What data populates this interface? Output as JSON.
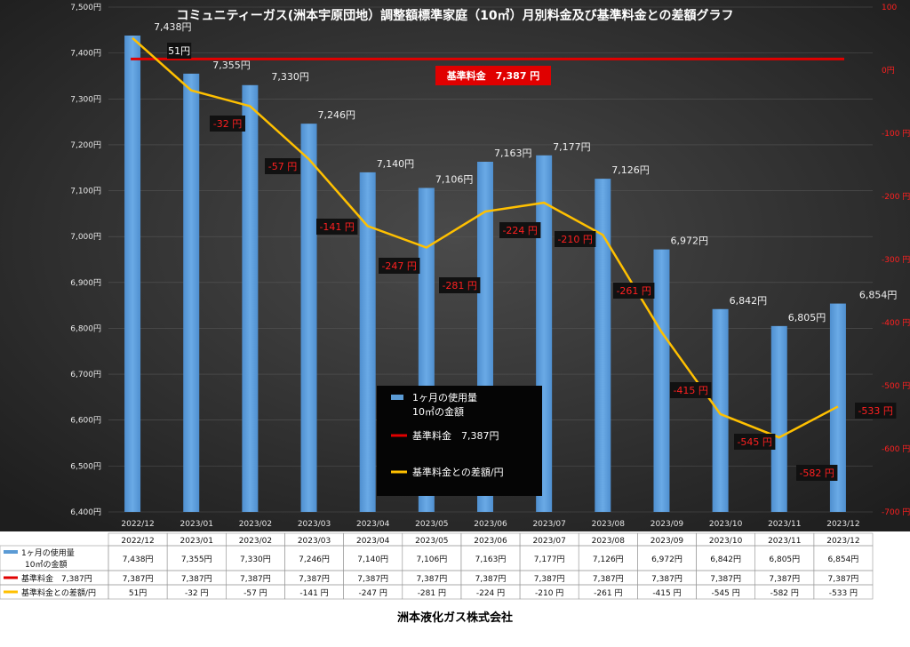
{
  "chart_data": {
    "type": "bar",
    "title": "コミュニティーガス(洲本宇原団地）調整額標準家庭（10㎥）月別料金及び基準料金との差額グラフ",
    "categories": [
      "2022/12",
      "2023/01",
      "2023/02",
      "2023/03",
      "2023/04",
      "2023/05",
      "2023/06",
      "2023/07",
      "2023/08",
      "2023/09",
      "2023/10",
      "2023/11",
      "2023/12"
    ],
    "series": [
      {
        "name": "1ヶ月の使用量\n10㎥の金額",
        "axis": "left",
        "kind": "bar",
        "values": [
          7438,
          7355,
          7330,
          7246,
          7140,
          7106,
          7163,
          7177,
          7126,
          6972,
          6842,
          6805,
          6854
        ],
        "labels": [
          "7,438円",
          "7,355円",
          "7,330円",
          "7,246円",
          "7,140円",
          "7,106円",
          "7,163円",
          "7,177円",
          "7,126円",
          "6,972円",
          "6,842円",
          "6,805円",
          "6,854円"
        ]
      },
      {
        "name": "基準料金　7,387円",
        "axis": "left",
        "kind": "line",
        "values": [
          7387,
          7387,
          7387,
          7387,
          7387,
          7387,
          7387,
          7387,
          7387,
          7387,
          7387,
          7387,
          7387
        ],
        "labels": [
          "7,387円",
          "7,387円",
          "7,387円",
          "7,387円",
          "7,387円",
          "7,387円",
          "7,387円",
          "7,387円",
          "7,387円",
          "7,387円",
          "7,387円",
          "7,387円",
          "7,387円"
        ]
      },
      {
        "name": "基準料金との差額/円",
        "axis": "right",
        "kind": "line",
        "values": [
          51,
          -32,
          -57,
          -141,
          -247,
          -281,
          -224,
          -210,
          -261,
          -415,
          -545,
          -582,
          -533
        ],
        "labels": [
          "51円",
          "-32 円",
          "-57 円",
          "-141 円",
          "-247 円",
          "-281 円",
          "-224 円",
          "-210 円",
          "-261 円",
          "-415 円",
          "-545 円",
          "-582 円",
          "-533 円"
        ],
        "table_labels": [
          "51円",
          "-32 円",
          "-57 円",
          "-141 円",
          "-247 円",
          "-281 円",
          "-224 円",
          "-210 円",
          "-261 円",
          "-415 円",
          "-545 円",
          "-582 円",
          "-533 円"
        ]
      }
    ],
    "y_left": {
      "ylim": [
        6400,
        7500
      ],
      "ticks": [
        "6,400円",
        "6,500円",
        "6,600円",
        "6,700円",
        "6,800円",
        "6,900円",
        "7,000円",
        "7,100円",
        "7,200円",
        "7,300円",
        "7,400円",
        "7,500円"
      ]
    },
    "y_right": {
      "ylim": [
        -700,
        100
      ],
      "ticks": [
        "-700 円",
        "-600 円",
        "-500 円",
        "-400 円",
        "-300 円",
        "-200 円",
        "-100 円",
        "0円",
        "100"
      ]
    },
    "base_annotation": "基準料金　7,387  円",
    "legend": {
      "placement": "center",
      "entries": [
        "1ヶ月の使用量",
        "10㎥の金額",
        "基準料金　7,387円",
        "基準料金との差額/円"
      ]
    },
    "table_row_labels": [
      "1ヶ月の使用量",
      "10㎥の金額",
      "基準料金　7,387円",
      "基準料金との差額/円"
    ],
    "colors": {
      "bar": "#5b9bd5",
      "base_line": "#e00000",
      "diff_line": "#ffc000",
      "right_axis": "#e00000",
      "background": "#2a2a2a"
    }
  },
  "footer": "洲本液化ガス株式会社"
}
